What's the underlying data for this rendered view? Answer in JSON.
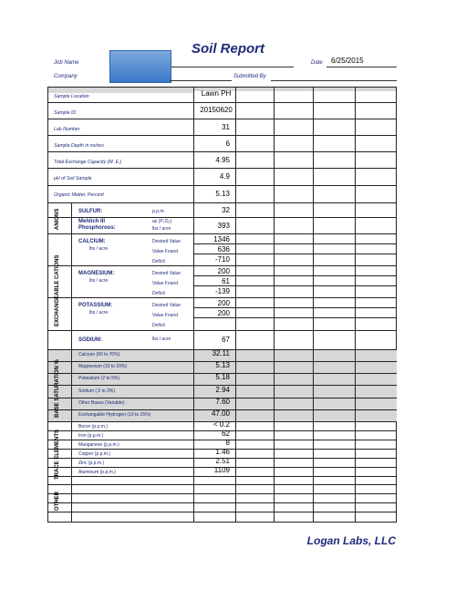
{
  "header": {
    "title": "Soil Report",
    "job_name_label": "Job Name",
    "company_label": "Company",
    "date_label": "Date",
    "date_value": "6/25/2015",
    "submitted_by_label": "Submitted By"
  },
  "rows": {
    "location": {
      "label": "Sample Location",
      "value": "Lawn PH"
    },
    "sample_id": {
      "label": "Sample ID",
      "value": "20150620"
    },
    "lab_number": {
      "label": "Lab Number",
      "value": "31"
    },
    "depth": {
      "label": "Sample Depth in inches",
      "value": "6"
    },
    "tec": {
      "label": "Total Exchange Capacity (M. E.)",
      "value": "4.95"
    },
    "ph": {
      "label": "pH of Soil Sample",
      "value": "4.9"
    },
    "organic": {
      "label": "Organic Matter, Percent",
      "value": "5.13"
    }
  },
  "anions": {
    "section": "ANIONS",
    "sulfur": {
      "label": "SULFUR:",
      "unit": "p.p.m.",
      "value": "32"
    },
    "phosphorus": {
      "label_1": "Mehlich III",
      "label_2": "Phosphorous:",
      "unit_1": "as (P₂O₅)",
      "unit_2": "lbs / acre",
      "value": "393"
    }
  },
  "cations": {
    "section": "EXCHANGEABLE CATIONS",
    "calcium": {
      "label": "CALCIUM:",
      "unit": "lbs / acre",
      "desired_label": "Desired Value",
      "found_label": "Value Found",
      "deficit_label": "Deficit",
      "desired": "1346",
      "found": "636",
      "deficit": "-710"
    },
    "magnesium": {
      "label": "MAGNESIUM:",
      "unit": "lbs / acre",
      "desired_label": "Desired Value",
      "found_label": "Value Found",
      "deficit_label": "Deficit",
      "desired": "200",
      "found": "61",
      "deficit": "-139"
    },
    "potassium": {
      "label": "POTASSIUM:",
      "unit": "lbs / acre",
      "desired_label": "Desired Value",
      "found_label": "Value Found",
      "deficit_label": "Deficit",
      "desired": "200",
      "found": "200",
      "deficit": ""
    },
    "sodium": {
      "label": "SODIUM:",
      "unit": "lbs / acre",
      "value": "67"
    }
  },
  "base_saturation": {
    "section": "BASE SATURATION %",
    "items": [
      {
        "label": "Calcium (60 to 70%)",
        "value": "32.11"
      },
      {
        "label": "Magnesium (10 to 20%)",
        "value": "5.13"
      },
      {
        "label": "Potassium (2 to 5%)",
        "value": "5.18"
      },
      {
        "label": "Sodium (.5 to 3%)",
        "value": "2.94"
      },
      {
        "label": "Other Bases (Variable)",
        "value": "7.60"
      },
      {
        "label": "Exchangable Hydrogen (10 to 15%)",
        "value": "47.00"
      }
    ]
  },
  "trace": {
    "section": "TRACE ELEMENTS",
    "items": [
      {
        "label": "Boron (p.p.m.)",
        "value": "< 0.2"
      },
      {
        "label": "Iron (p.p.m.)",
        "value": "62"
      },
      {
        "label": "Manganese (p.p.m.)",
        "value": "8"
      },
      {
        "label": "Copper (p.p.m.)",
        "value": "1.46"
      },
      {
        "label": "Zinc (p.p.m.)",
        "value": "2.51"
      },
      {
        "label": "Aluminum (p.p.m.)",
        "value": "1109"
      }
    ]
  },
  "other": {
    "section": "OTHER"
  },
  "footer": {
    "company": "Logan Labs, LLC"
  },
  "colors": {
    "label_navy": "#1f2a7a",
    "shade_gray": "#d7d7d7",
    "redaction_blue": "#3a79c9"
  }
}
